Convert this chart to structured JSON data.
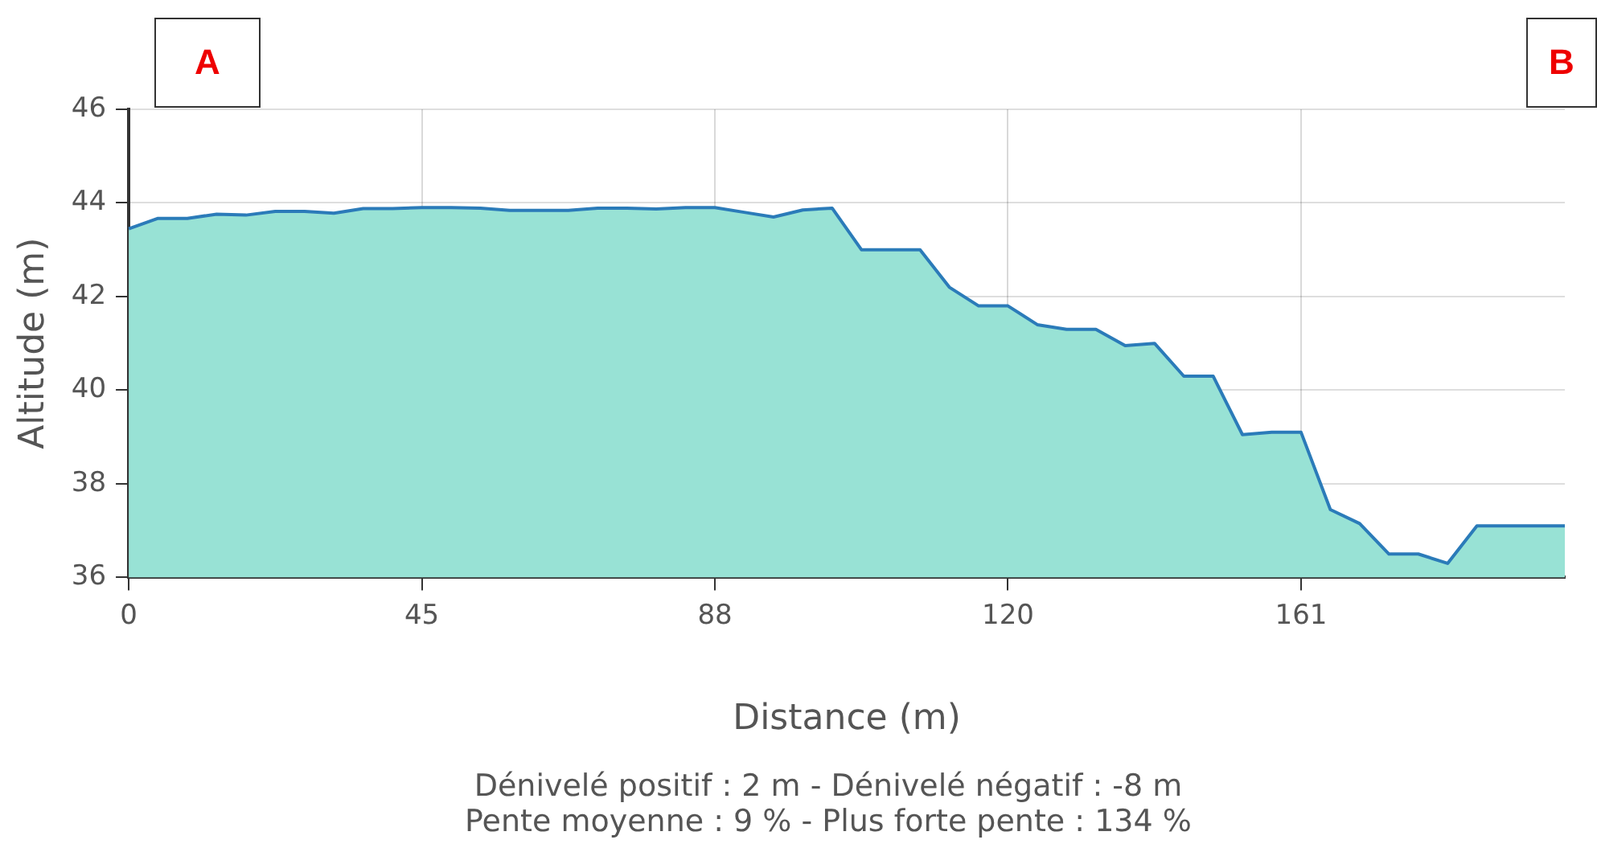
{
  "chart_data": {
    "type": "area",
    "xlabel": "Distance (m)",
    "ylabel": "Altitude (m)",
    "categories": [
      "0",
      null,
      null,
      null,
      null,
      null,
      null,
      null,
      null,
      null,
      "45",
      null,
      null,
      null,
      null,
      null,
      null,
      null,
      null,
      null,
      "88",
      null,
      null,
      null,
      null,
      null,
      null,
      null,
      null,
      null,
      "120",
      null,
      null,
      null,
      null,
      null,
      null,
      null,
      null,
      null,
      "161",
      null,
      null,
      null,
      null,
      null,
      null,
      null,
      null,
      null
    ],
    "series": [
      {
        "color": "#98e2d5",
        "values": [
          43.45,
          43.67,
          43.67,
          43.76,
          43.74,
          43.82,
          43.82,
          43.78,
          43.88,
          43.88,
          43.9,
          43.9,
          43.89,
          43.84,
          43.84,
          43.84,
          43.89,
          43.89,
          43.87,
          43.9,
          43.9,
          43.8,
          43.7,
          43.85,
          43.89,
          43.0,
          43.0,
          43.0,
          42.2,
          41.8,
          41.8,
          41.4,
          41.3,
          41.3,
          40.95,
          41.0,
          40.3,
          40.3,
          39.05,
          39.1,
          39.1,
          37.45,
          37.15,
          36.5,
          36.5,
          36.3,
          37.1,
          37.1,
          37.1,
          37.1
        ]
      }
    ],
    "ylim": [
      36,
      46
    ],
    "yticks": [
      36,
      38,
      40,
      42,
      44,
      46
    ],
    "grid": true,
    "marker": "none",
    "annotations": [
      "A",
      "B",
      "Dénivelé positif : 2 m - Dénivelé négatif : -8 m",
      "Pente moyenne : 9 % - Plus forte pente : 134 %"
    ]
  }
}
